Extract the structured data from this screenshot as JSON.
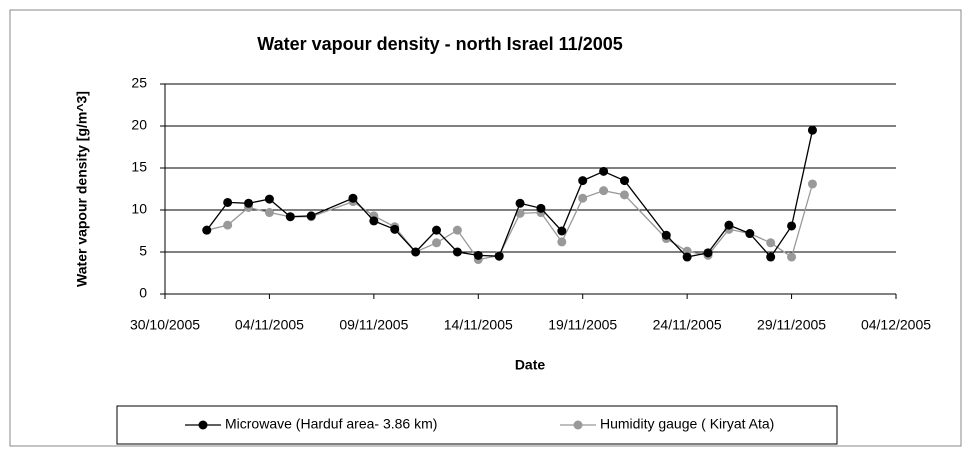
{
  "chart_data": {
    "type": "line",
    "title": "Water vapour density - north Israel  11/2005",
    "x_label": "Date",
    "y_label": "Water vapour density  [g/m^3]",
    "x": [
      "01/11/2005",
      "02/11/2005",
      "03/11/2005",
      "04/11/2005",
      "05/11/2005",
      "06/11/2005",
      "08/11/2005",
      "09/11/2005",
      "10/11/2005",
      "11/11/2005",
      "12/11/2005",
      "13/11/2005",
      "14/11/2005",
      "15/11/2005",
      "16/11/2005",
      "17/11/2005",
      "18/11/2005",
      "19/11/2005",
      "20/11/2005",
      "21/11/2005",
      "23/11/2005",
      "24/11/2005",
      "25/11/2005",
      "26/11/2005",
      "27/11/2005",
      "28/11/2005",
      "29/11/2005",
      "30/11/2005"
    ],
    "series": [
      {
        "name": "Microwave (Harduf area- 3.86 km)",
        "color": "#000000",
        "values": [
          7.6,
          10.9,
          10.8,
          11.3,
          9.2,
          9.3,
          11.4,
          8.7,
          7.7,
          5.0,
          7.6,
          5.0,
          4.6,
          4.5,
          10.8,
          10.2,
          7.5,
          13.5,
          14.6,
          13.5,
          7.0,
          4.4,
          4.9,
          8.2,
          7.2,
          4.4,
          8.1,
          19.5
        ]
      },
      {
        "name": "Humidity gauge ( Kiryat Ata)",
        "color": "#999999",
        "values": [
          7.6,
          8.2,
          10.3,
          9.7,
          9.2,
          9.2,
          11.0,
          9.3,
          8.0,
          5.0,
          6.1,
          7.6,
          4.1,
          4.6,
          9.6,
          9.7,
          6.2,
          11.4,
          12.3,
          11.8,
          6.6,
          5.1,
          4.6,
          7.7,
          7.2,
          6.1,
          4.4,
          13.1
        ]
      }
    ],
    "xlim": [
      "30/10/2005",
      "04/12/2005"
    ],
    "xticks": [
      "30/10/2005",
      "04/11/2005",
      "09/11/2005",
      "14/11/2005",
      "19/11/2005",
      "24/11/2005",
      "29/11/2005",
      "04/12/2005"
    ],
    "ylim": [
      0,
      25
    ],
    "yticks": [
      0,
      5,
      10,
      15,
      20,
      25
    ],
    "grid": true,
    "legend": "bottom"
  }
}
